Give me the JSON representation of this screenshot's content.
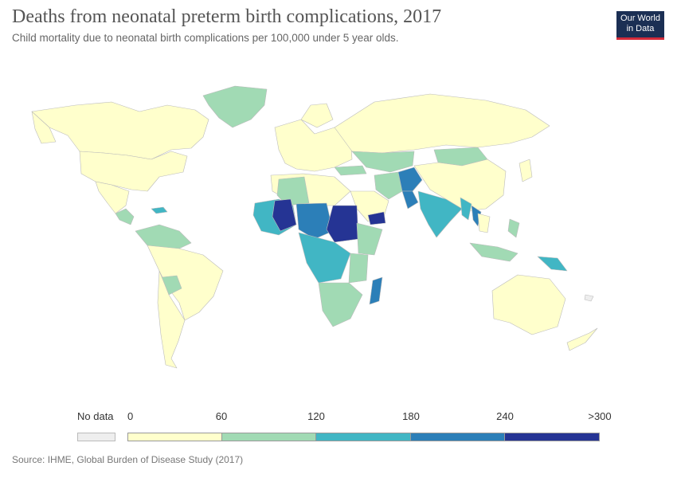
{
  "header": {
    "title": "Deaths from neonatal preterm birth complications, 2017",
    "subtitle": "Child mortality due to neonatal birth complications per 100,000 under 5 year olds."
  },
  "logo": {
    "line1": "Our World",
    "line2": "in Data"
  },
  "legend": {
    "no_data_label": "No data",
    "tick_labels": [
      "0",
      "60",
      "120",
      "180",
      "240",
      ">300"
    ],
    "bin_colors": [
      "#ffffcc",
      "#a1dab4",
      "#41b6c4",
      "#2c7fb8",
      "#253494"
    ],
    "no_data_color": "#eeeeee"
  },
  "source": "Source: IHME, Global Burden of Disease Study (2017)",
  "map_colors": {
    "ocean": "#ffffff",
    "border": "#bbbbbb"
  }
}
